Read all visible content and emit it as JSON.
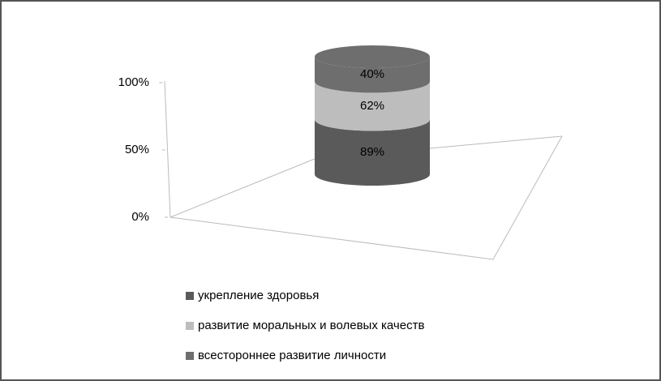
{
  "chart_data": {
    "type": "cylinder-stacked",
    "stacking": "percent",
    "categories": [
      null
    ],
    "series": [
      {
        "name": "укрепление здоровья",
        "color": "#5a5a5a",
        "values": [
          89
        ],
        "value_labels": [
          "89%"
        ]
      },
      {
        "name": "развитие моральных и волевых качеств",
        "color": "#bdbdbd",
        "values": [
          62
        ],
        "value_labels": [
          "62%"
        ]
      },
      {
        "name": "всестороннее развитие личности",
        "color": "#6e6e6e",
        "values": [
          40
        ],
        "value_labels": [
          "40%"
        ]
      }
    ],
    "ylim": [
      0,
      100
    ],
    "yticks": [
      {
        "value": 0,
        "label": "0%"
      },
      {
        "value": 50,
        "label": "50%"
      },
      {
        "value": 100,
        "label": "100%"
      }
    ]
  }
}
